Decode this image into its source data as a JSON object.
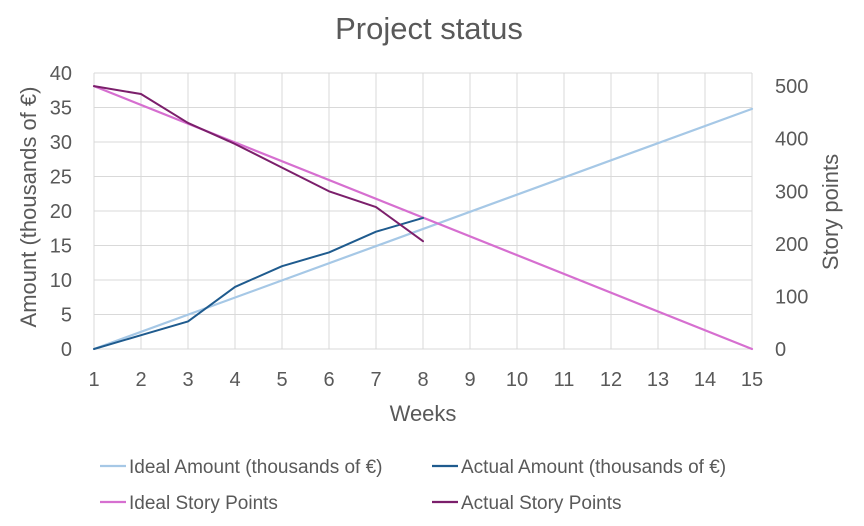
{
  "chart_data": {
    "type": "line",
    "title": "Project status",
    "xlabel": "Weeks",
    "ylabel_left": "Amount (thousands of €)",
    "ylabel_right": "Story points",
    "x": [
      1,
      2,
      3,
      4,
      5,
      6,
      7,
      8,
      9,
      10,
      11,
      12,
      13,
      14,
      15
    ],
    "ylim_left": [
      0,
      40
    ],
    "yticks_left": [
      0,
      5,
      10,
      15,
      20,
      25,
      30,
      35,
      40
    ],
    "ylim_right": [
      0,
      525
    ],
    "yticks_right": [
      0,
      100,
      200,
      300,
      400,
      500
    ],
    "grid": true,
    "legend_position": "bottom",
    "series": [
      {
        "name": "Ideal Amount (thousands of €)",
        "axis": "left",
        "color": "#a6c8e6",
        "x": [
          1,
          15
        ],
        "values": [
          0,
          34.8
        ]
      },
      {
        "name": "Actual Amount (thousands of €)",
        "axis": "left",
        "color": "#1f5b8e",
        "x": [
          1,
          2,
          3,
          4,
          5,
          6,
          7,
          8
        ],
        "values": [
          0,
          2,
          4,
          9,
          12,
          14,
          17,
          19
        ]
      },
      {
        "name": "Ideal Story Points",
        "axis": "right",
        "color": "#d66fd0",
        "x": [
          1,
          15
        ],
        "values": [
          500,
          0
        ]
      },
      {
        "name": "Actual Story Points",
        "axis": "right",
        "color": "#7b1f6b",
        "x": [
          1,
          2,
          3,
          4,
          5,
          6,
          7,
          8
        ],
        "values": [
          500,
          485,
          430,
          390,
          345,
          300,
          270,
          205
        ]
      }
    ]
  }
}
